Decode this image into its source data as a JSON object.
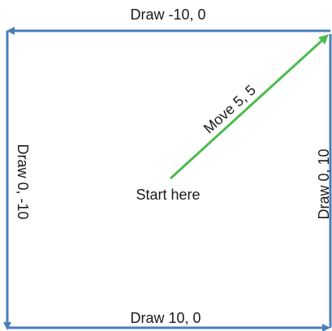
{
  "diagram": {
    "colors": {
      "path": "#4a7ebb",
      "move": "#4cbb4c",
      "text": "#1a1a1a",
      "background": "#ffffff"
    },
    "labels": {
      "top": "Draw -10, 0",
      "left": "Draw 0, -10",
      "bottom": "Draw 10, 0",
      "right": "Draw 0, 10",
      "move": "Move 5, 5",
      "start": "Start here"
    }
  }
}
